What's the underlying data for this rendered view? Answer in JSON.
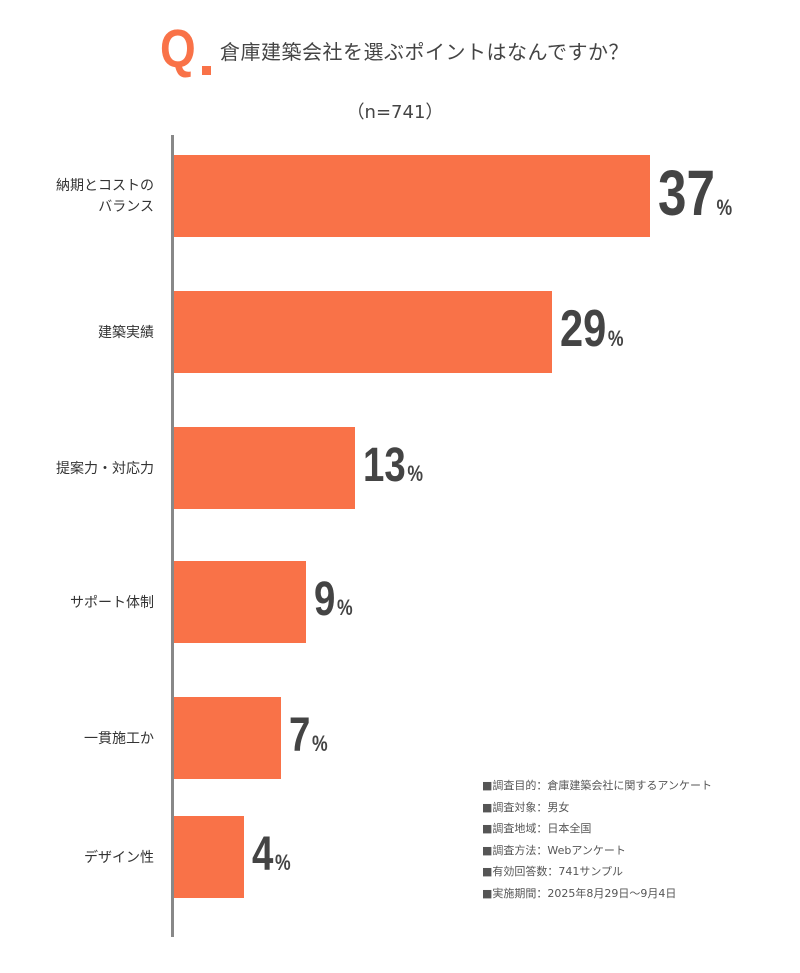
{
  "header": {
    "q_mark": "Q",
    "title": "倉庫建築会社を選ぶポイントはなんですか？",
    "sample": "（n=741）"
  },
  "chart_data": {
    "type": "bar",
    "orientation": "horizontal",
    "title": "倉庫建築会社を選ぶポイントはなんですか？",
    "categories": [
      "納期とコストのバランス",
      "建築実績",
      "提案力・対応力",
      "サポート体制",
      "一貫施工か",
      "デザイン性"
    ],
    "category_lines": [
      [
        "納期とコストの",
        "バランス"
      ],
      [
        "建築実績"
      ],
      [
        "提案力・対応力"
      ],
      [
        "サポート体制"
      ],
      [
        "一貫施工か"
      ],
      [
        "デザイン性"
      ]
    ],
    "values": [
      37,
      29,
      13,
      9,
      7,
      4
    ],
    "unit": "%",
    "color": "#F97248",
    "grid": false
  },
  "notes": [
    "■調査目的：倉庫建築会社に関するアンケート",
    "■調査対象：男女",
    "■調査地域：日本全国",
    "■調査方法：Webアンケート",
    "■有効回答数：741サンプル",
    "■実施期間：2025年8月29日～9月4日"
  ]
}
